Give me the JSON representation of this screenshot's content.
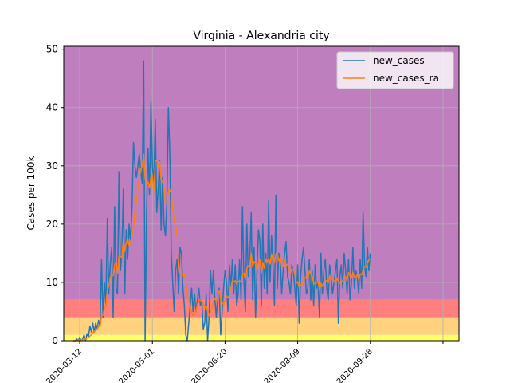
{
  "chart_data": {
    "type": "line",
    "title": "Virginia - Alexandria city",
    "ylabel": "Cases per 100k",
    "xlabel": "",
    "ylim": [
      0,
      50.5
    ],
    "x_start": "2020-03-01",
    "x_end": "2020-11-28",
    "x_ticks": [
      "2020-03-12",
      "2020-05-01",
      "2020-06-20",
      "2020-08-09",
      "2020-09-28"
    ],
    "y_ticks": [
      "0",
      "10",
      "20",
      "30",
      "40",
      "50"
    ],
    "grid": true,
    "legend_position": "top-right",
    "bands": [
      {
        "from": 0,
        "to": 1,
        "color": "#ffff66"
      },
      {
        "from": 1,
        "to": 4,
        "color": "#ffd27f"
      },
      {
        "from": 4,
        "to": 7,
        "color": "#ff7f7f"
      },
      {
        "from": 7,
        "to": 50.5,
        "color": "#bf7fbf"
      }
    ],
    "series": [
      {
        "name": "new_cases",
        "color": "#1f77b4",
        "values": [
          0,
          0,
          0,
          0.3,
          0,
          0.6,
          0,
          0.3,
          1,
          0,
          1.2,
          0.6,
          2.5,
          1.5,
          3,
          1.5,
          3,
          2,
          3.5,
          2.5,
          14,
          4,
          10,
          6,
          21,
          8,
          13,
          16,
          4,
          23,
          9,
          8,
          29,
          12,
          15,
          26,
          8,
          19,
          14,
          20,
          17,
          23,
          34,
          30,
          28,
          30,
          32,
          29,
          27,
          48,
          0,
          22,
          33,
          25,
          41,
          30,
          27,
          38,
          22,
          26,
          31,
          19,
          28,
          20,
          18,
          24,
          40,
          32,
          15,
          10,
          5,
          12,
          14,
          8,
          16,
          15,
          9,
          6,
          1,
          0,
          3,
          6,
          9,
          5,
          8,
          5,
          7,
          9,
          6,
          7,
          2,
          3,
          8,
          0,
          4,
          12,
          8,
          12,
          7,
          4,
          8,
          9,
          1,
          5,
          9,
          12,
          10,
          5,
          13,
          9,
          14,
          8,
          13,
          6,
          8,
          14,
          7,
          23,
          10,
          5,
          20,
          11,
          14,
          22,
          7,
          16,
          4,
          12,
          19,
          17,
          6,
          20,
          9,
          15,
          8,
          24,
          10,
          18,
          13,
          6,
          25,
          9,
          15,
          14,
          8,
          12,
          15,
          17,
          11,
          10,
          8,
          13,
          12,
          9,
          6,
          13,
          3,
          11,
          14,
          16,
          12,
          8,
          9,
          14,
          7,
          12,
          6,
          13,
          9,
          10,
          4,
          15,
          8,
          12,
          14,
          9,
          7,
          13,
          11,
          8,
          10,
          12,
          14,
          3,
          11,
          13,
          9,
          15,
          12,
          8,
          14,
          7,
          10,
          16,
          9,
          12,
          11,
          8,
          14,
          9,
          22,
          13,
          11,
          16,
          12,
          15
        ],
        "smooth_window": 7
      },
      {
        "name": "new_cases_ra",
        "color": "#ff7f0e",
        "derived_from": "new_cases"
      }
    ]
  }
}
